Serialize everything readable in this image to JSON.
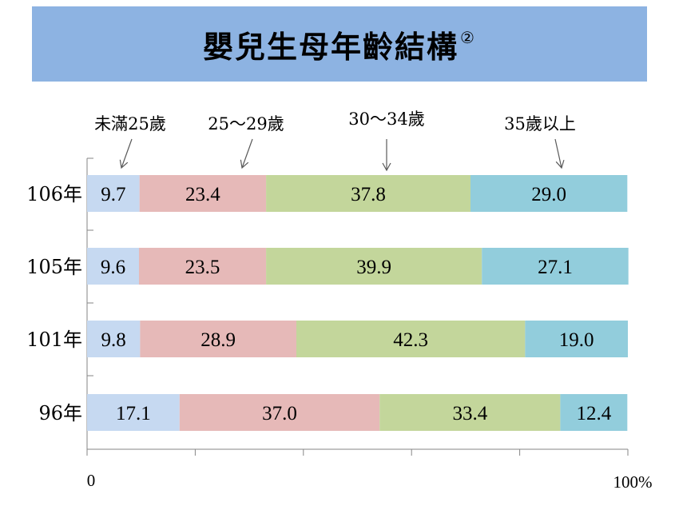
{
  "title": "嬰兒生母年齡結構",
  "title_superscript": "②",
  "chart_data": {
    "type": "bar",
    "orientation": "horizontal",
    "stacked": true,
    "categories": [
      "106年",
      "105年",
      "101年",
      "96年"
    ],
    "series": [
      {
        "name": "未滿25歲",
        "color": "#c6d9f1",
        "values": [
          9.7,
          9.6,
          9.8,
          17.1
        ]
      },
      {
        "name": "25～29歲",
        "color": "#e6b9b8",
        "values": [
          23.4,
          23.5,
          28.9,
          37.0
        ]
      },
      {
        "name": "30～34歲",
        "color": "#c3d69b",
        "values": [
          37.8,
          39.9,
          42.3,
          33.4
        ]
      },
      {
        "name": "35歲以上",
        "color": "#92cddc",
        "values": [
          29.0,
          27.1,
          19.0,
          12.4
        ]
      }
    ],
    "xlim": [
      0,
      100
    ],
    "x_tick_labels": [
      "0",
      "100%"
    ],
    "grid": false,
    "legend": "annotations-top-with-arrows"
  }
}
